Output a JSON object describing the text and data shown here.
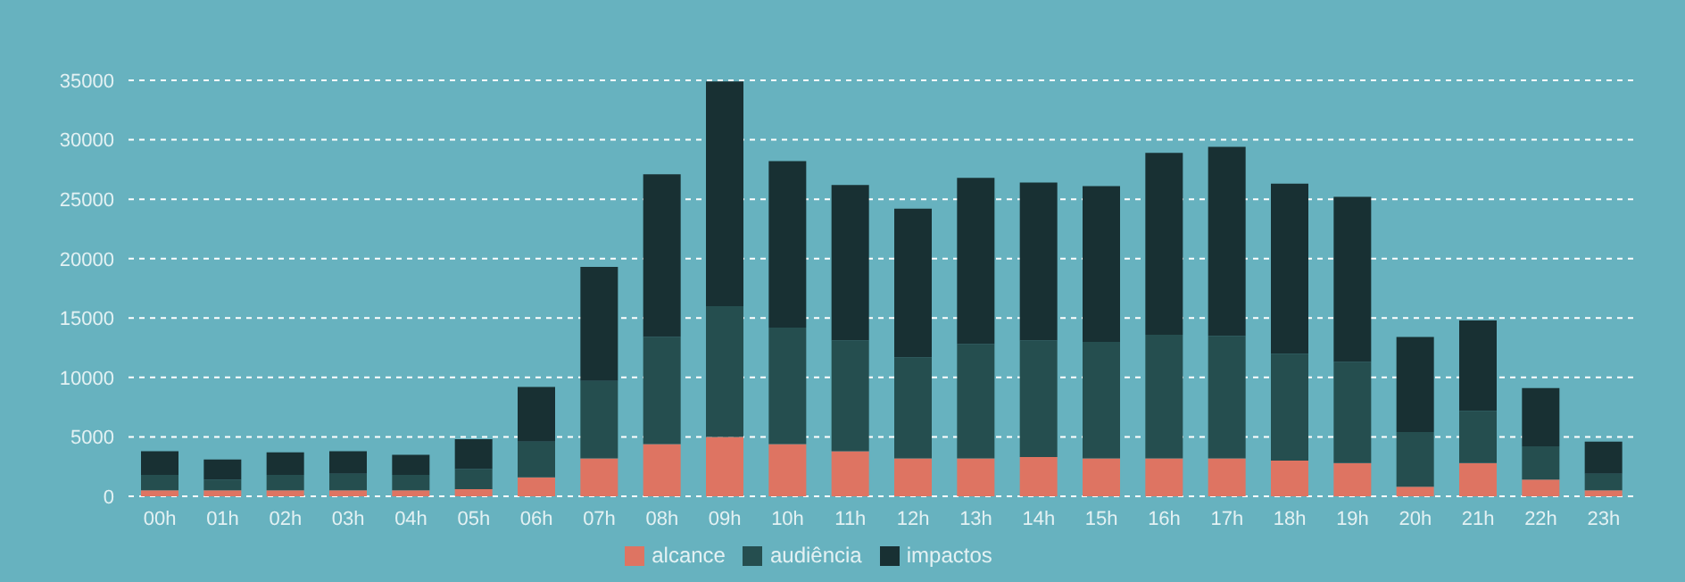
{
  "chart_data": {
    "type": "bar",
    "stacked": true,
    "categories": [
      "00h",
      "01h",
      "02h",
      "03h",
      "04h",
      "05h",
      "06h",
      "07h",
      "08h",
      "09h",
      "10h",
      "11h",
      "12h",
      "13h",
      "14h",
      "15h",
      "16h",
      "17h",
      "18h",
      "19h",
      "20h",
      "21h",
      "22h",
      "23h"
    ],
    "series": [
      {
        "name": "alcance",
        "color": "#de7462",
        "values": [
          500,
          500,
          500,
          500,
          500,
          600,
          1600,
          3200,
          4400,
          5000,
          4400,
          3800,
          3200,
          3200,
          3300,
          3200,
          3200,
          3200,
          3000,
          2800,
          800,
          2800,
          1400,
          500
        ]
      },
      {
        "name": "audiência",
        "color": "#254e4f",
        "values": [
          1300,
          900,
          1300,
          1400,
          1300,
          1700,
          3000,
          6500,
          9000,
          11000,
          9800,
          9300,
          8500,
          9600,
          9800,
          9800,
          10400,
          10300,
          9000,
          8500,
          4600,
          4400,
          2800,
          1400
        ]
      },
      {
        "name": "impactos",
        "color": "#183033",
        "values": [
          2000,
          1700,
          1900,
          1900,
          1700,
          2500,
          4600,
          9600,
          13700,
          18900,
          14000,
          13100,
          12500,
          14000,
          13300,
          13100,
          15300,
          15900,
          14300,
          13900,
          8000,
          7600,
          4900,
          2700
        ]
      }
    ],
    "ylim": [
      0,
      35000
    ],
    "yticks": [
      0,
      5000,
      10000,
      15000,
      20000,
      25000,
      30000,
      35000
    ],
    "grid": "y",
    "legend": "bottom"
  }
}
